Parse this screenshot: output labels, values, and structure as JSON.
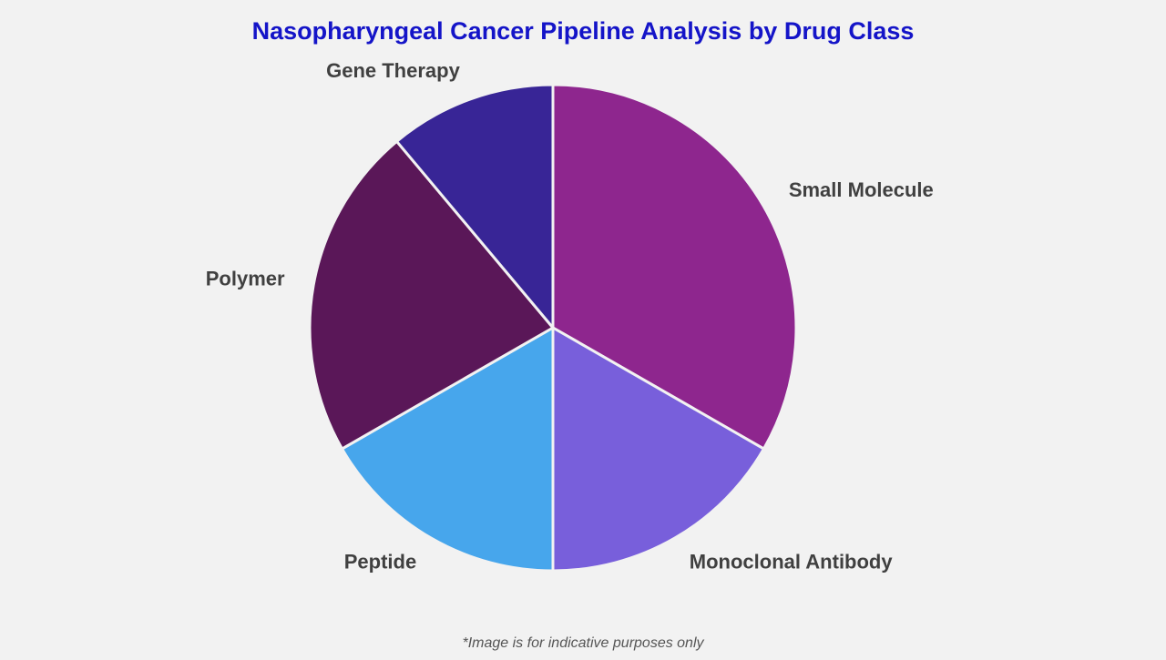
{
  "chart_data": {
    "type": "pie",
    "title": "Nasopharyngeal Cancer Pipeline Analysis by Drug Class",
    "categories": [
      "Small Molecule",
      "Monoclonal Antibody",
      "Peptide",
      "Polymer",
      "Gene Therapy"
    ],
    "values": [
      33.3,
      16.7,
      16.7,
      22.2,
      11.1
    ],
    "colors": [
      "#8e268e",
      "#785fdb",
      "#47a6ec",
      "#5a1758",
      "#382596"
    ],
    "note": "*Image is for indicative purposes only"
  }
}
